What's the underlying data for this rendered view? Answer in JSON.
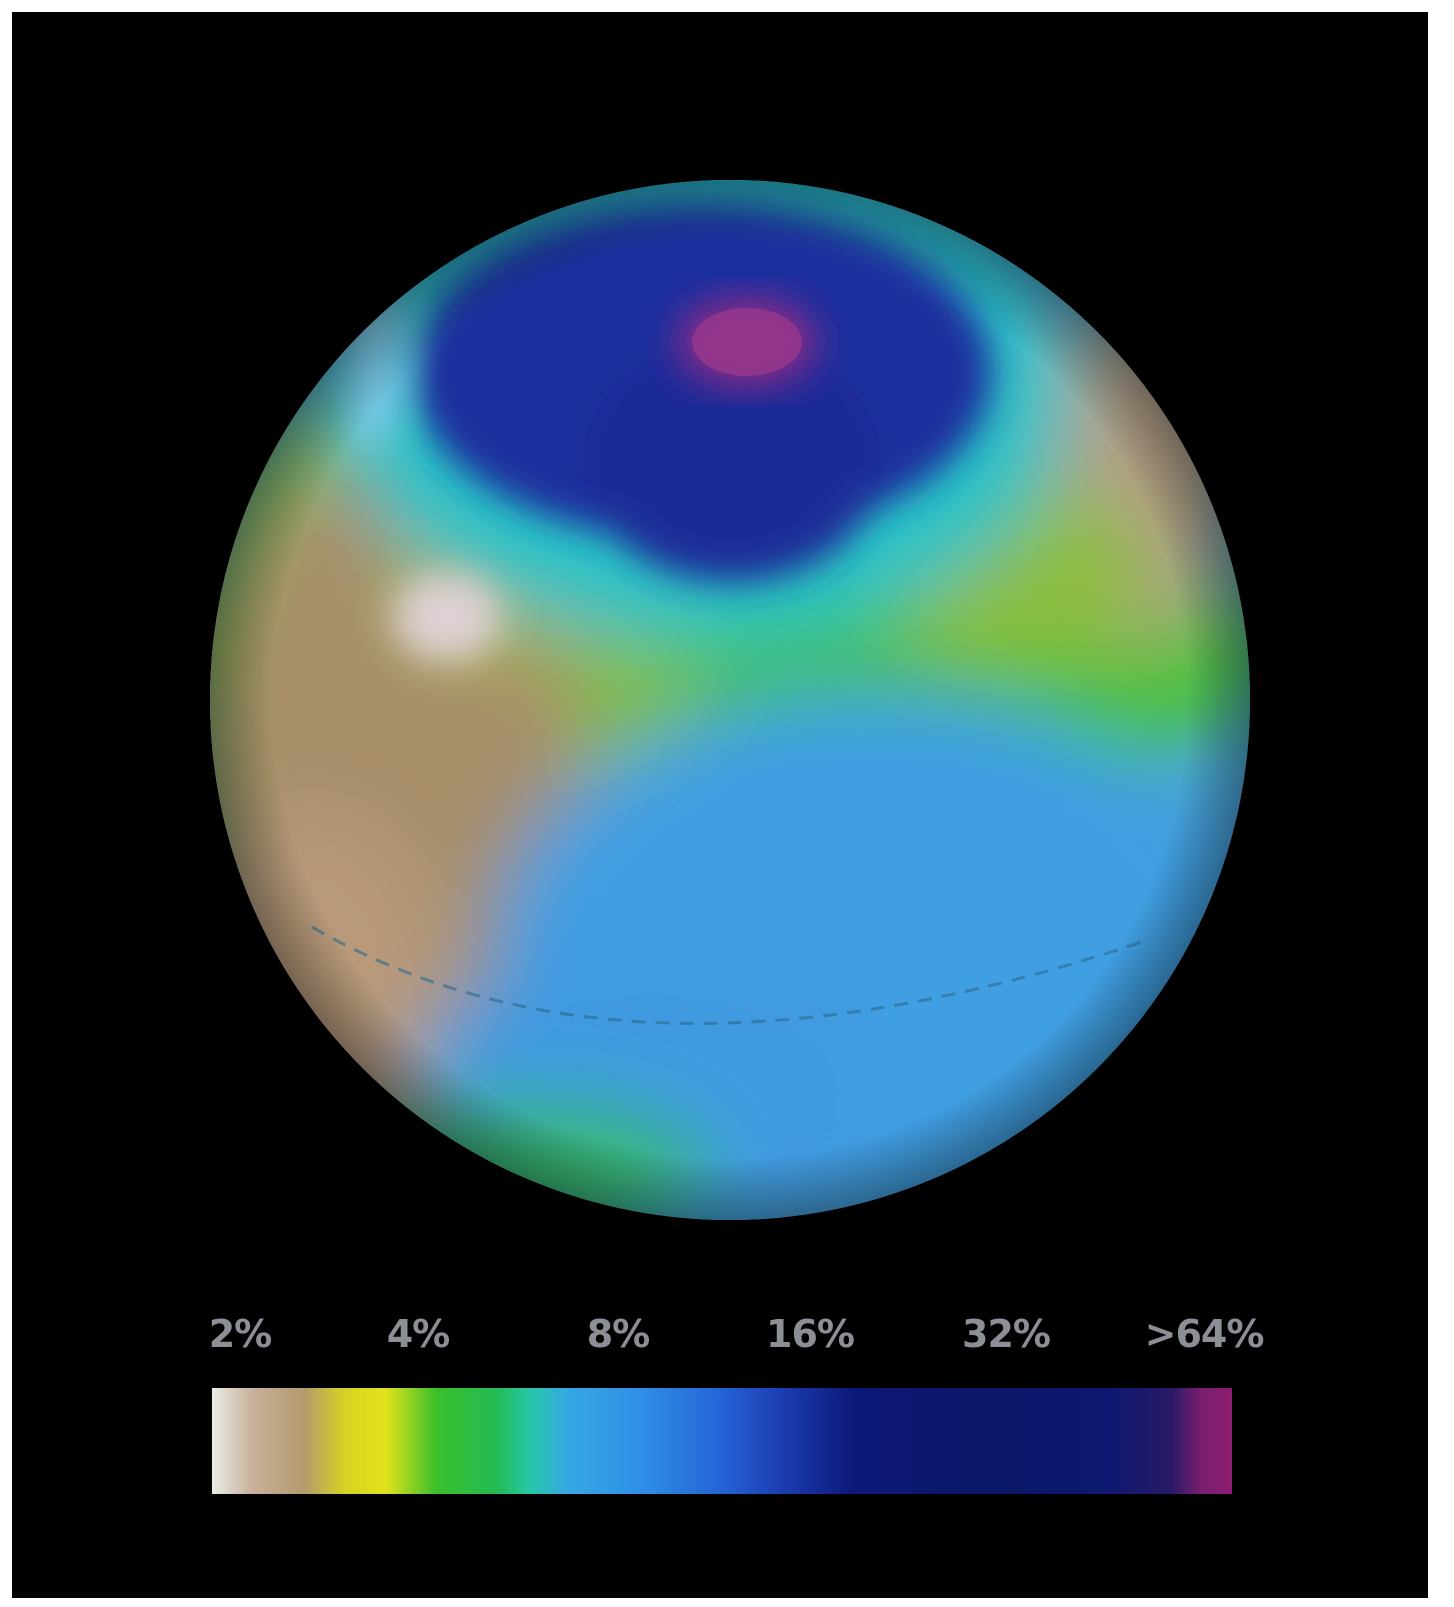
{
  "colorbar": {
    "tick_labels": [
      "2%",
      "4%",
      "8%",
      "16%",
      "32%",
      ">64%"
    ]
  },
  "colors": {
    "background": "#000000",
    "low": "#e8ece4",
    "mid_yellow": "#e2e31a",
    "mid_green": "#3bbf2a",
    "mid_blue": "#2f8fe6",
    "high_navy": "#0c1878",
    "max_magenta": "#8c1d70"
  }
}
